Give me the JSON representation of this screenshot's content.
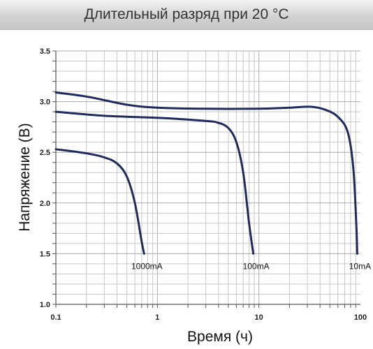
{
  "chart_data": {
    "type": "line",
    "title": "Длительный разряд при 20 °С",
    "xlabel": "Время (ч)",
    "ylabel": "Напряжение (В)",
    "xscale": "log",
    "xlim": [
      0.1,
      100
    ],
    "ylim": [
      1.0,
      3.5
    ],
    "x_ticks": [
      "0.1",
      "1",
      "10",
      "100"
    ],
    "y_ticks": [
      "1.0",
      "1.5",
      "2.0",
      "2.5",
      "3.0",
      "3.5"
    ],
    "grid": true,
    "colors": {
      "line": "#1f2a5e",
      "grid": "#c8c8c8",
      "axis": "#555555"
    },
    "series": [
      {
        "name": "1000mA",
        "points": [
          [
            0.1,
            2.53
          ],
          [
            0.2,
            2.49
          ],
          [
            0.3,
            2.45
          ],
          [
            0.4,
            2.39
          ],
          [
            0.5,
            2.26
          ],
          [
            0.6,
            2.0
          ],
          [
            0.7,
            1.62
          ],
          [
            0.74,
            1.5
          ]
        ]
      },
      {
        "name": "100mA",
        "points": [
          [
            0.1,
            2.9
          ],
          [
            0.3,
            2.86
          ],
          [
            1,
            2.84
          ],
          [
            3,
            2.81
          ],
          [
            4,
            2.79
          ],
          [
            5,
            2.74
          ],
          [
            6,
            2.6
          ],
          [
            7,
            2.3
          ],
          [
            8,
            1.8
          ],
          [
            8.8,
            1.5
          ]
        ]
      },
      {
        "name": "10mA",
        "points": [
          [
            0.1,
            3.09
          ],
          [
            0.2,
            3.05
          ],
          [
            0.5,
            2.97
          ],
          [
            1,
            2.94
          ],
          [
            3,
            2.93
          ],
          [
            10,
            2.93
          ],
          [
            20,
            2.94
          ],
          [
            32,
            2.95
          ],
          [
            45,
            2.92
          ],
          [
            60,
            2.85
          ],
          [
            75,
            2.7
          ],
          [
            85,
            2.35
          ],
          [
            91,
            1.8
          ],
          [
            93,
            1.5
          ]
        ]
      }
    ]
  }
}
